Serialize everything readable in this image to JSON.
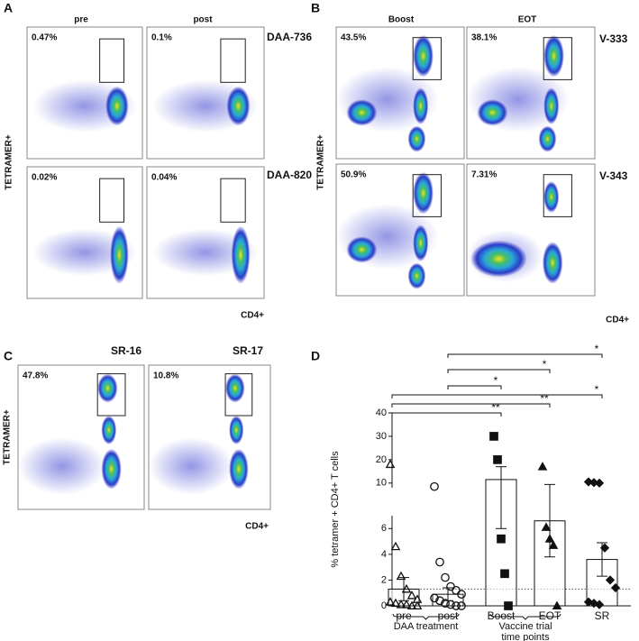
{
  "panels": {
    "A": {
      "label": "A",
      "columns": [
        "pre",
        "post"
      ],
      "rows": [
        "DAA-736",
        "DAA-820"
      ],
      "percentages": [
        [
          "0.47%",
          "0.1%"
        ],
        [
          "0.02%",
          "0.04%"
        ]
      ],
      "y_label": "TETRAMER+",
      "x_label": "CD4+"
    },
    "B": {
      "label": "B",
      "columns": [
        "Boost",
        "EOT"
      ],
      "rows": [
        "V-333",
        "V-343"
      ],
      "percentages": [
        [
          "43.5%",
          "38.1%"
        ],
        [
          "50.9%",
          "7.31%"
        ]
      ],
      "y_label": "TETRAMER+",
      "x_label": "CD4+"
    },
    "C": {
      "label": "C",
      "columns": [
        "SR-16",
        "SR-17"
      ],
      "percentages": [
        "47.8%",
        "10.8%"
      ],
      "y_label": "TETRAMER+",
      "x_label": "CD4+"
    }
  },
  "chart_data": {
    "label": "D",
    "type": "bar",
    "y_label": "% tetramer + CD4+ T cells",
    "categories": [
      "pre",
      "post",
      "Boost",
      "EOT",
      "SR"
    ],
    "values": [
      1.3,
      0.9,
      11.5,
      6.6,
      3.6
    ],
    "errors": [
      0.9,
      0.5,
      5.5,
      2.8,
      1.3
    ],
    "points": [
      [
        18,
        4.6,
        2.3,
        1.3,
        0.8,
        0.5,
        0.3,
        0.2,
        0.1,
        0.1,
        0,
        0
      ],
      [
        8.5,
        3.4,
        2.2,
        1.5,
        1.2,
        0.9,
        0.6,
        0.4,
        0.2,
        0.1,
        0,
        0
      ],
      [
        30,
        20,
        5.2,
        2.5,
        0
      ],
      [
        17,
        6.1,
        5.2,
        4.7,
        0
      ],
      [
        10.5,
        10.2,
        10,
        4.5,
        2,
        1.4,
        0.3,
        0.2,
        0.1
      ]
    ],
    "markers": [
      "triangle-open",
      "circle-open",
      "square",
      "triangle",
      "diamond"
    ],
    "ylim": [
      0,
      40
    ],
    "ybreak": [
      7,
      8
    ],
    "yticks": [
      0,
      2,
      4,
      6,
      10,
      20,
      30,
      40
    ],
    "reference_line": 1.3,
    "significance": [
      {
        "from": 1,
        "to": 4,
        "label": "*"
      },
      {
        "from": 1,
        "to": 3,
        "label": "*"
      },
      {
        "from": 1,
        "to": 2,
        "label": "*"
      },
      {
        "from": 0,
        "to": 4,
        "label": "*"
      },
      {
        "from": 0,
        "to": 3,
        "label": "**"
      },
      {
        "from": 0,
        "to": 2,
        "label": "**"
      }
    ],
    "groups": [
      {
        "labels": [
          "DAA treatment"
        ],
        "from": 0,
        "to": 1
      },
      {
        "labels": [
          "Vaccine trial",
          "time points"
        ],
        "from": 2,
        "to": 3
      }
    ]
  }
}
